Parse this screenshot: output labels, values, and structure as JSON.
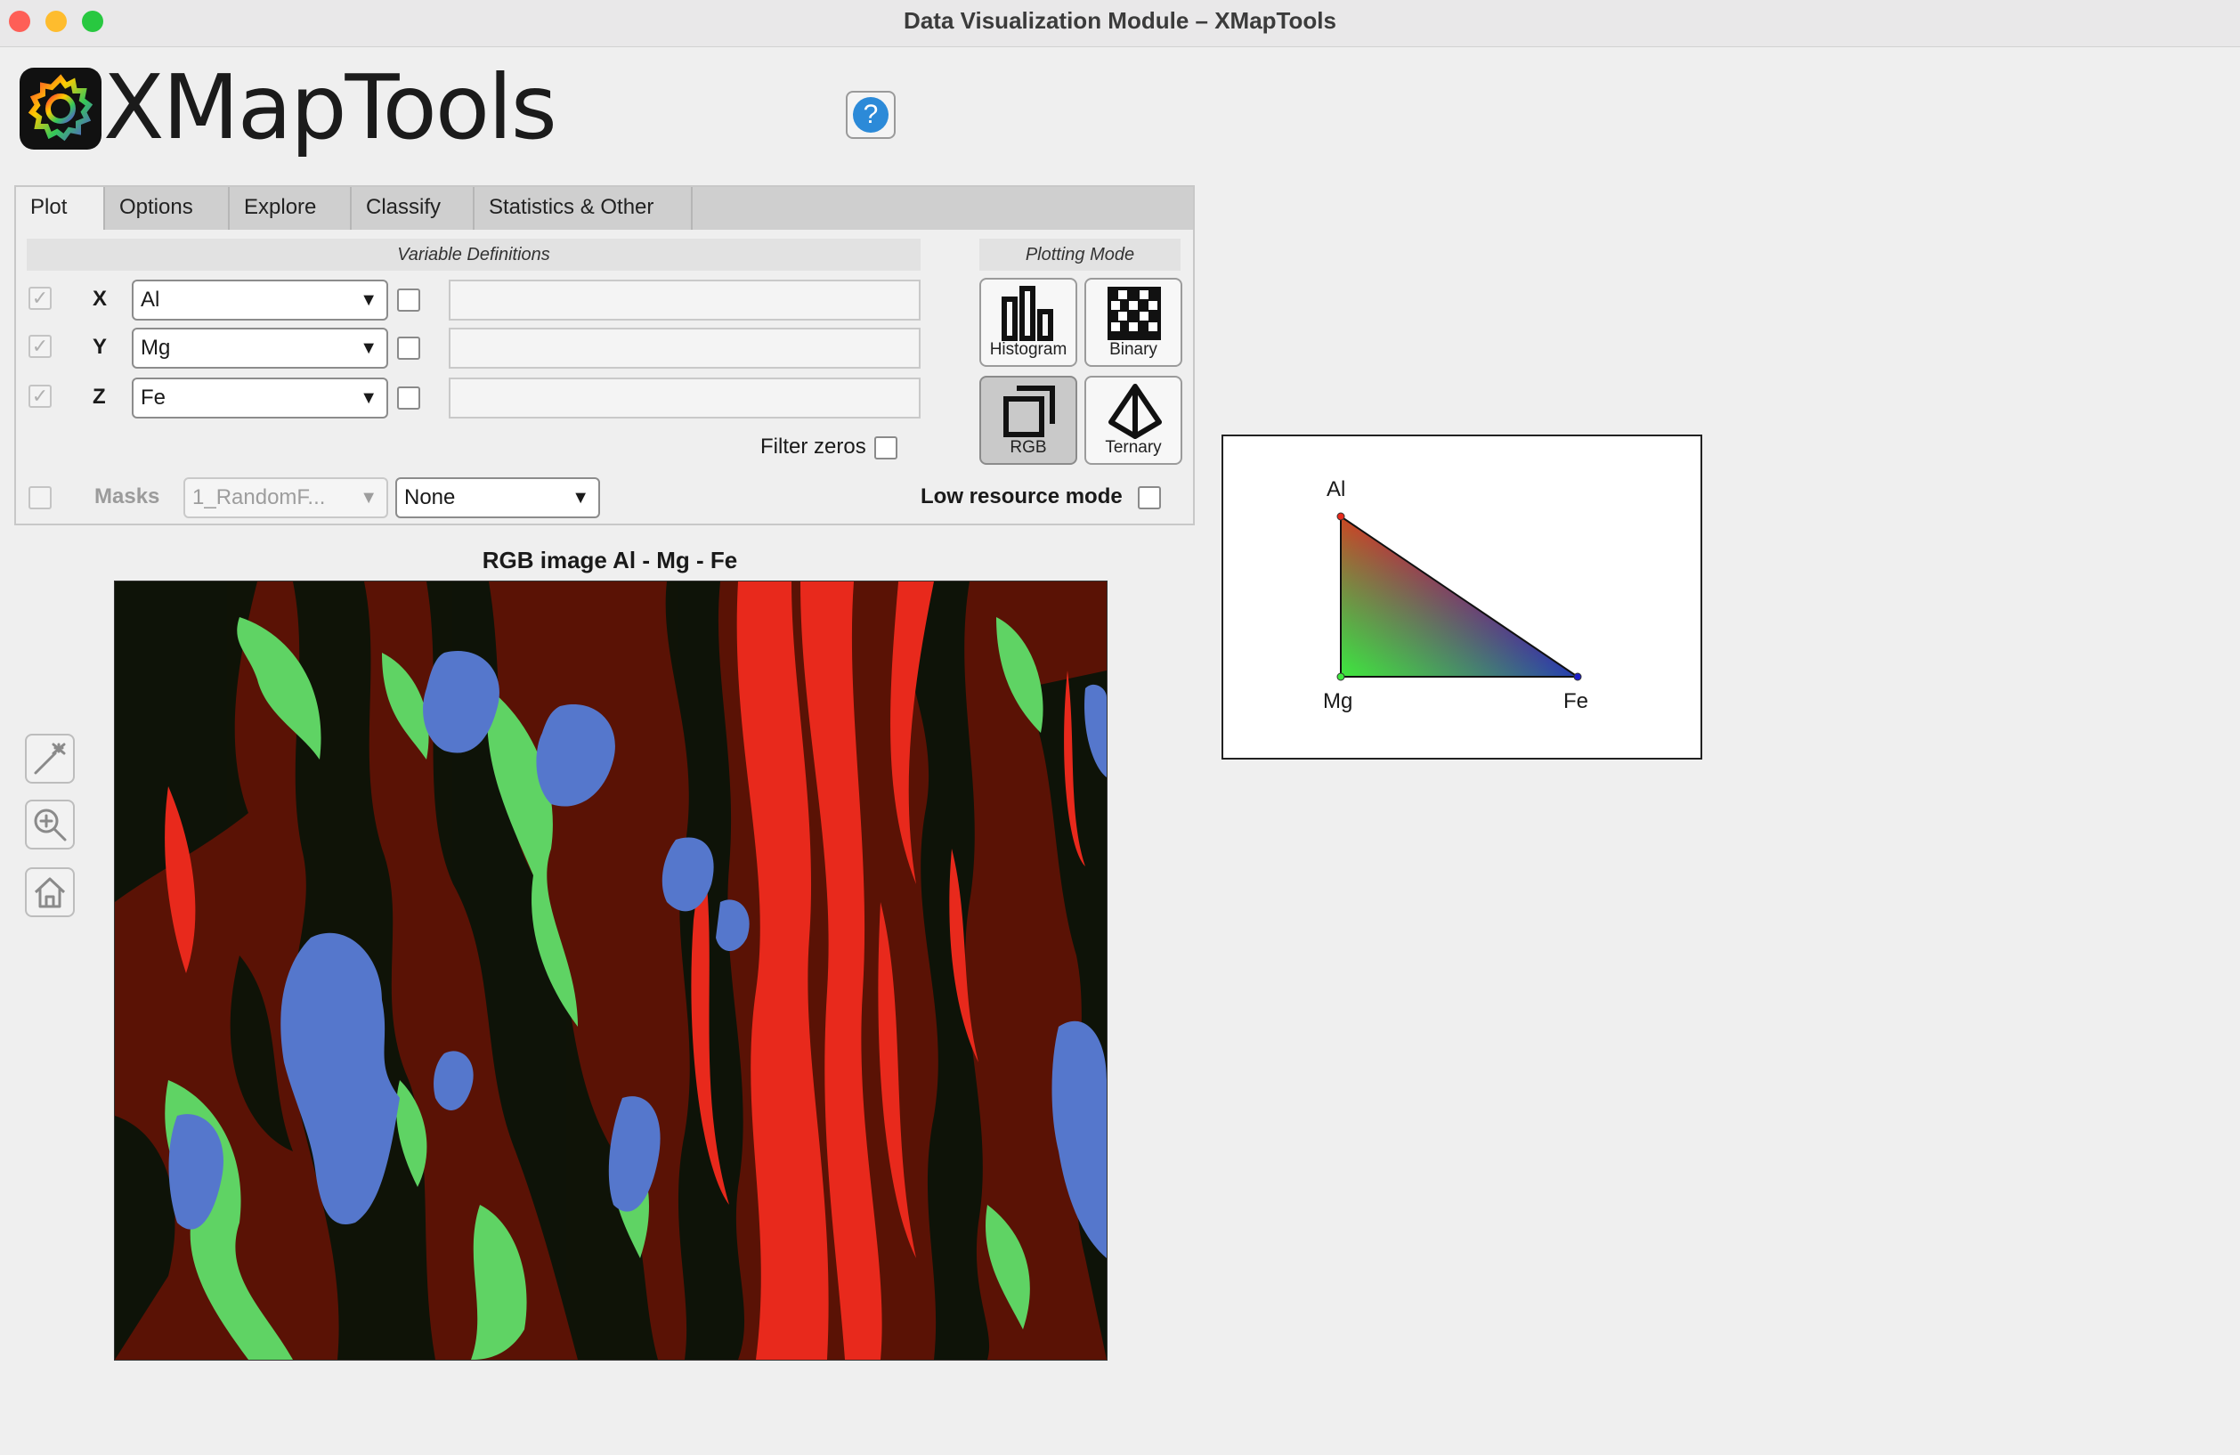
{
  "window": {
    "title": "Data Visualization Module – XMapTools",
    "traffic_lights": {
      "close": "#fe5f57",
      "minimize": "#febc2e",
      "zoom": "#28c840"
    }
  },
  "header": {
    "logo_text": "XMapTools",
    "help_icon": "?"
  },
  "tabs": [
    {
      "label": "Plot",
      "active": true
    },
    {
      "label": "Options"
    },
    {
      "label": "Explore"
    },
    {
      "label": "Classify"
    },
    {
      "label": "Statistics & Other"
    }
  ],
  "variables": {
    "heading": "Variable Definitions",
    "rows": [
      {
        "axis": "X",
        "value": "Al"
      },
      {
        "axis": "Y",
        "value": "Mg"
      },
      {
        "axis": "Z",
        "value": "Fe"
      }
    ],
    "filter_zeros_label": "Filter zeros",
    "masks_label": "Masks",
    "masks_value": "1_RandomF...",
    "masks_sub_value": "None",
    "low_resource_label": "Low resource mode"
  },
  "plotting_mode": {
    "heading": "Plotting Mode",
    "buttons": [
      {
        "label": "Histogram",
        "icon": "histogram-icon"
      },
      {
        "label": "Binary",
        "icon": "checkerboard-icon"
      },
      {
        "label": "RGB",
        "icon": "stacked-squares-icon",
        "selected": true
      },
      {
        "label": "Ternary",
        "icon": "ternary-icon"
      }
    ]
  },
  "image": {
    "title": "RGB image Al - Mg - Fe",
    "colors": {
      "al": "#e8291c",
      "mg": "#5fd364",
      "fe": "#5577cc",
      "bg": "#5a1205",
      "dark": "#0b1408"
    }
  },
  "tools": [
    "magic-wand-icon",
    "zoom-in-icon",
    "home-icon"
  ],
  "ternary_legend": {
    "top": "Al",
    "bottom_left": "Mg",
    "bottom_right": "Fe"
  }
}
